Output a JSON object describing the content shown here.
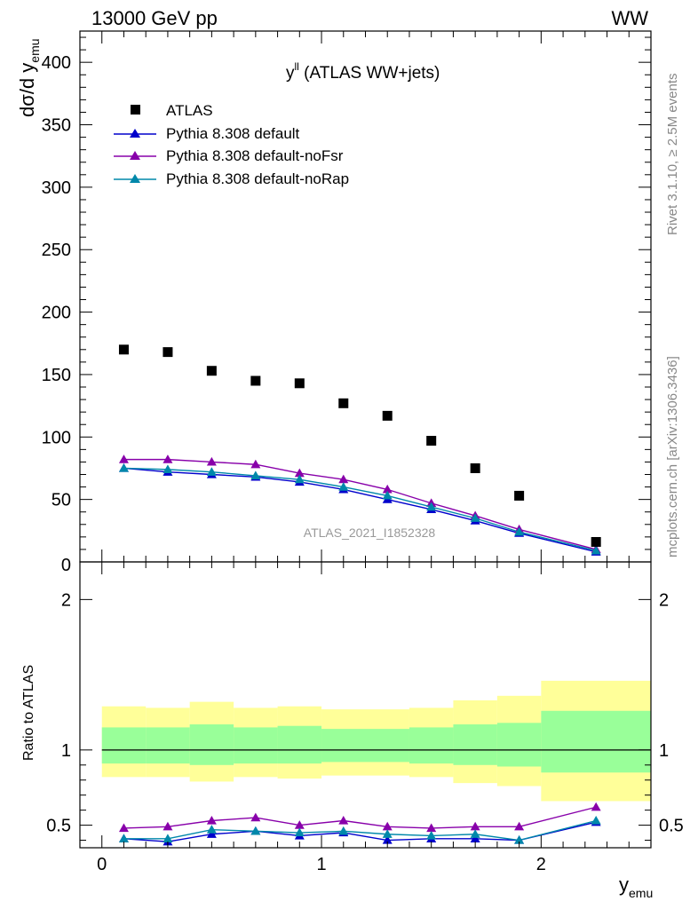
{
  "header": {
    "left": "13000 GeV pp",
    "right": "WW"
  },
  "side_labels": {
    "rivet": "Rivet 3.1.10, ≥ 2.5M events",
    "mcplots": "mcplots.cern.ch [arXiv:1306.3436]"
  },
  "colors": {
    "atlas": "#000000",
    "default": "#0000cc",
    "noFsr": "#8800aa",
    "noRap": "#0088aa",
    "band_outer": "#ffff99",
    "band_inner": "#99ff99"
  },
  "chart_data": [
    {
      "type": "scatter",
      "title_main": "y",
      "title_sup": "ll",
      "title_rest": " (ATLAS WW+jets)",
      "ylabel": "dσ/d y",
      "ylabel_sub": "emu",
      "xlim": [
        -0.1,
        2.5
      ],
      "ylim": [
        0,
        425
      ],
      "yticks": [
        50,
        100,
        150,
        200,
        250,
        300,
        350,
        400
      ],
      "ytick_labels": [
        "50",
        "100",
        "150",
        "200",
        "250",
        "300",
        "350",
        "400"
      ],
      "bottom_tick_label": "0",
      "watermark": "ATLAS_2021_I1852328",
      "legend_position": "top-left",
      "x": [
        0.1,
        0.3,
        0.5,
        0.7,
        0.9,
        1.1,
        1.3,
        1.5,
        1.7,
        1.9,
        2.25
      ],
      "series": [
        {
          "name": "ATLAS",
          "marker": "square",
          "color": "#000000",
          "values": [
            170,
            168,
            153,
            145,
            143,
            127,
            117,
            97,
            75,
            53,
            16
          ]
        },
        {
          "name": "Pythia 8.308 default",
          "marker": "triangle",
          "color": "#0000cc",
          "values": [
            75,
            72,
            70,
            68,
            64,
            58,
            50,
            42,
            33,
            23,
            8
          ]
        },
        {
          "name": "Pythia 8.308 default-noFsr",
          "marker": "triangle",
          "color": "#8800aa",
          "values": [
            82,
            82,
            80,
            78,
            71,
            66,
            58,
            47,
            37,
            26,
            10
          ]
        },
        {
          "name": "Pythia 8.308 default-noRap",
          "marker": "triangle",
          "color": "#0088aa",
          "values": [
            75,
            74,
            72,
            69,
            66,
            60,
            53,
            44,
            35,
            24,
            9
          ]
        }
      ]
    },
    {
      "type": "line",
      "ylabel": "Ratio to ATLAS",
      "xlabel": "y",
      "xlabel_sub": "emu",
      "xlim": [
        -0.1,
        2.5
      ],
      "ylim": [
        0.35,
        2.25
      ],
      "xticks": [
        0,
        1,
        2
      ],
      "xtick_labels": [
        "0",
        "1",
        "2"
      ],
      "yticks": [
        0.5,
        1,
        2
      ],
      "ytick_labels": [
        "0.5",
        "1",
        "2"
      ],
      "reference_line": 1,
      "bands": {
        "bins": [
          0.0,
          0.2,
          0.4,
          0.6,
          0.8,
          1.0,
          1.2,
          1.4,
          1.6,
          1.8,
          2.0,
          2.5
        ],
        "outer_low": [
          0.82,
          0.82,
          0.79,
          0.82,
          0.81,
          0.83,
          0.83,
          0.82,
          0.78,
          0.76,
          0.66
        ],
        "outer_high": [
          1.29,
          1.28,
          1.32,
          1.28,
          1.29,
          1.27,
          1.27,
          1.28,
          1.33,
          1.36,
          1.46
        ],
        "inner_low": [
          0.91,
          0.91,
          0.9,
          0.91,
          0.91,
          0.92,
          0.92,
          0.91,
          0.9,
          0.89,
          0.85
        ],
        "inner_high": [
          1.15,
          1.15,
          1.17,
          1.15,
          1.16,
          1.14,
          1.14,
          1.15,
          1.17,
          1.18,
          1.26
        ]
      },
      "x": [
        0.1,
        0.3,
        0.5,
        0.7,
        0.9,
        1.1,
        1.3,
        1.5,
        1.7,
        1.9,
        2.25
      ],
      "series": [
        {
          "name": "Pythia 8.308 default",
          "color": "#0000cc",
          "values": [
            0.41,
            0.39,
            0.44,
            0.46,
            0.43,
            0.45,
            0.4,
            0.41,
            0.41,
            0.4,
            0.52
          ]
        },
        {
          "name": "Pythia 8.308 default-noFsr",
          "color": "#8800aa",
          "values": [
            0.48,
            0.49,
            0.53,
            0.55,
            0.5,
            0.53,
            0.49,
            0.48,
            0.49,
            0.49,
            0.62
          ]
        },
        {
          "name": "Pythia 8.308 default-noRap",
          "color": "#0088aa",
          "values": [
            0.41,
            0.41,
            0.47,
            0.46,
            0.45,
            0.46,
            0.44,
            0.43,
            0.44,
            0.4,
            0.53
          ]
        }
      ]
    }
  ]
}
